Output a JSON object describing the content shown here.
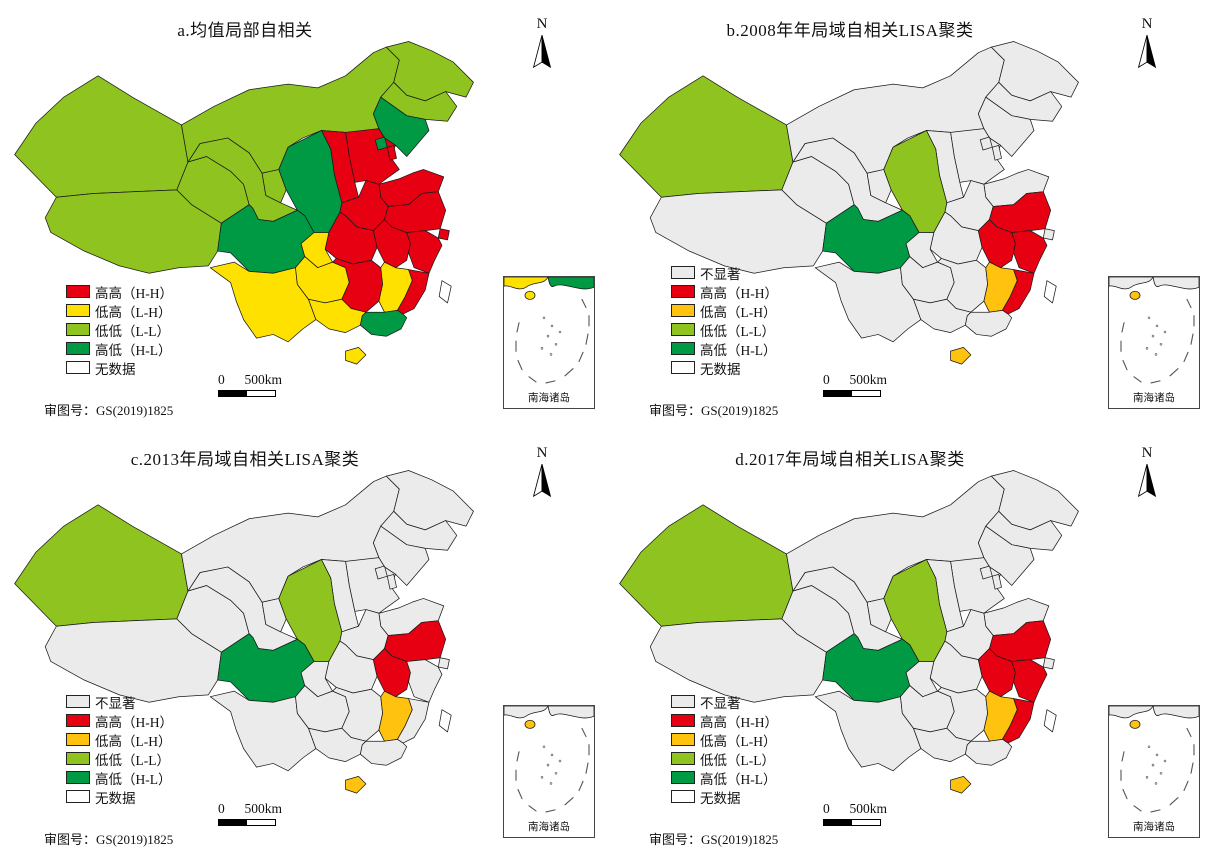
{
  "figure": {
    "north_label": "N",
    "panels": [
      {
        "id": "a",
        "title": "a.均值局部自相关",
        "legend": [
          {
            "key": "HH",
            "label": "高高（H-H）",
            "color": "#e60012"
          },
          {
            "key": "LH",
            "label": "低高（L-H）",
            "color": "#ffe100"
          },
          {
            "key": "LL",
            "label": "低低（L-L）",
            "color": "#8fc31f"
          },
          {
            "key": "HL",
            "label": "高低（H-L）",
            "color": "#009944"
          },
          {
            "key": "ND",
            "label": "无数据",
            "color": "#ffffff"
          }
        ],
        "default_key": "ND",
        "classification": {
          "xinjiang": "LL",
          "xizang": "LL",
          "qinghai": "LL",
          "gansu": "LL",
          "ningxia": "LL",
          "neimenggu": "LL",
          "heilongjiang": "LL",
          "jilin": "LL",
          "liaoning": "HL",
          "beijing": "HL",
          "shaanxi": "HL",
          "sichuan": "HL",
          "guangdong": "HL",
          "tianjin": "HH",
          "hebei": "HH",
          "shanxi": "HH",
          "shandong": "HH",
          "henan": "HH",
          "jiangsu": "HH",
          "shanghai": "HH",
          "anhui": "HH",
          "zhejiang": "HH",
          "hubei": "HH",
          "hunan": "HH",
          "fujian": "HH",
          "chongqing": "LH",
          "guizhou": "LH",
          "yunnan": "LH",
          "guangxi": "LH",
          "jiangxi": "LH",
          "hainan": "LH",
          "taiwan": "ND"
        },
        "scalebar": {
          "zero": "0",
          "dist": "500km"
        },
        "review_label": "审图号：GS(2019)1825",
        "inset_label": "南海诸岛"
      },
      {
        "id": "b",
        "title": "b.2008年年局域自相关LISA聚类",
        "legend": [
          {
            "key": "NS",
            "label": "不显著",
            "color": "#ebebeb"
          },
          {
            "key": "HH",
            "label": "高高（H-H）",
            "color": "#e60012"
          },
          {
            "key": "LH",
            "label": "低高（L-H）",
            "color": "#ffc20e"
          },
          {
            "key": "LL",
            "label": "低低（L-L）",
            "color": "#8fc31f"
          },
          {
            "key": "HL",
            "label": "高低（H-L）",
            "color": "#009944"
          },
          {
            "key": "ND",
            "label": "无数据",
            "color": "#ffffff"
          }
        ],
        "default_key": "NS",
        "classification": {
          "xinjiang": "LL",
          "shaanxi": "LL",
          "sichuan": "HL",
          "jiangsu": "HH",
          "anhui": "HH",
          "zhejiang": "HH",
          "fujian": "HH",
          "jiangxi": "LH",
          "hainan": "LH",
          "taiwan": "ND"
        },
        "scalebar": {
          "zero": "0",
          "dist": "500km"
        },
        "review_label": "审图号：GS(2019)1825",
        "inset_label": "南海诸岛"
      },
      {
        "id": "c",
        "title": "c.2013年局域自相关LISA聚类",
        "legend": [
          {
            "key": "NS",
            "label": "不显著",
            "color": "#ebebeb"
          },
          {
            "key": "HH",
            "label": "高高（H-H）",
            "color": "#e60012"
          },
          {
            "key": "LH",
            "label": "低高（L-H）",
            "color": "#ffc20e"
          },
          {
            "key": "LL",
            "label": "低低（L-L）",
            "color": "#8fc31f"
          },
          {
            "key": "HL",
            "label": "高低（H-L）",
            "color": "#009944"
          },
          {
            "key": "ND",
            "label": "无数据",
            "color": "#ffffff"
          }
        ],
        "default_key": "NS",
        "classification": {
          "xinjiang": "LL",
          "shaanxi": "LL",
          "sichuan": "HL",
          "jiangsu": "HH",
          "anhui": "HH",
          "jiangxi": "LH",
          "hainan": "LH",
          "taiwan": "ND"
        },
        "scalebar": {
          "zero": "0",
          "dist": "500km"
        },
        "review_label": "审图号：GS(2019)1825",
        "inset_label": "南海诸岛"
      },
      {
        "id": "d",
        "title": "d.2017年局域自相关LISA聚类",
        "legend": [
          {
            "key": "NS",
            "label": "不显著",
            "color": "#ebebeb"
          },
          {
            "key": "HH",
            "label": "高高（H-H）",
            "color": "#e60012"
          },
          {
            "key": "LH",
            "label": "低高（L-H）",
            "color": "#ffc20e"
          },
          {
            "key": "LL",
            "label": "低低（L-L）",
            "color": "#8fc31f"
          },
          {
            "key": "HL",
            "label": "高低（H-L）",
            "color": "#009944"
          },
          {
            "key": "ND",
            "label": "无数据",
            "color": "#ffffff"
          }
        ],
        "default_key": "NS",
        "classification": {
          "xinjiang": "LL",
          "shaanxi": "LL",
          "sichuan": "HL",
          "jiangsu": "HH",
          "anhui": "HH",
          "zhejiang": "HH",
          "fujian": "HH",
          "jiangxi": "LH",
          "hainan": "LH",
          "taiwan": "ND"
        },
        "scalebar": {
          "zero": "0",
          "dist": "500km"
        },
        "review_label": "审图号：GS(2019)1825",
        "inset_label": "南海诸岛"
      }
    ]
  }
}
